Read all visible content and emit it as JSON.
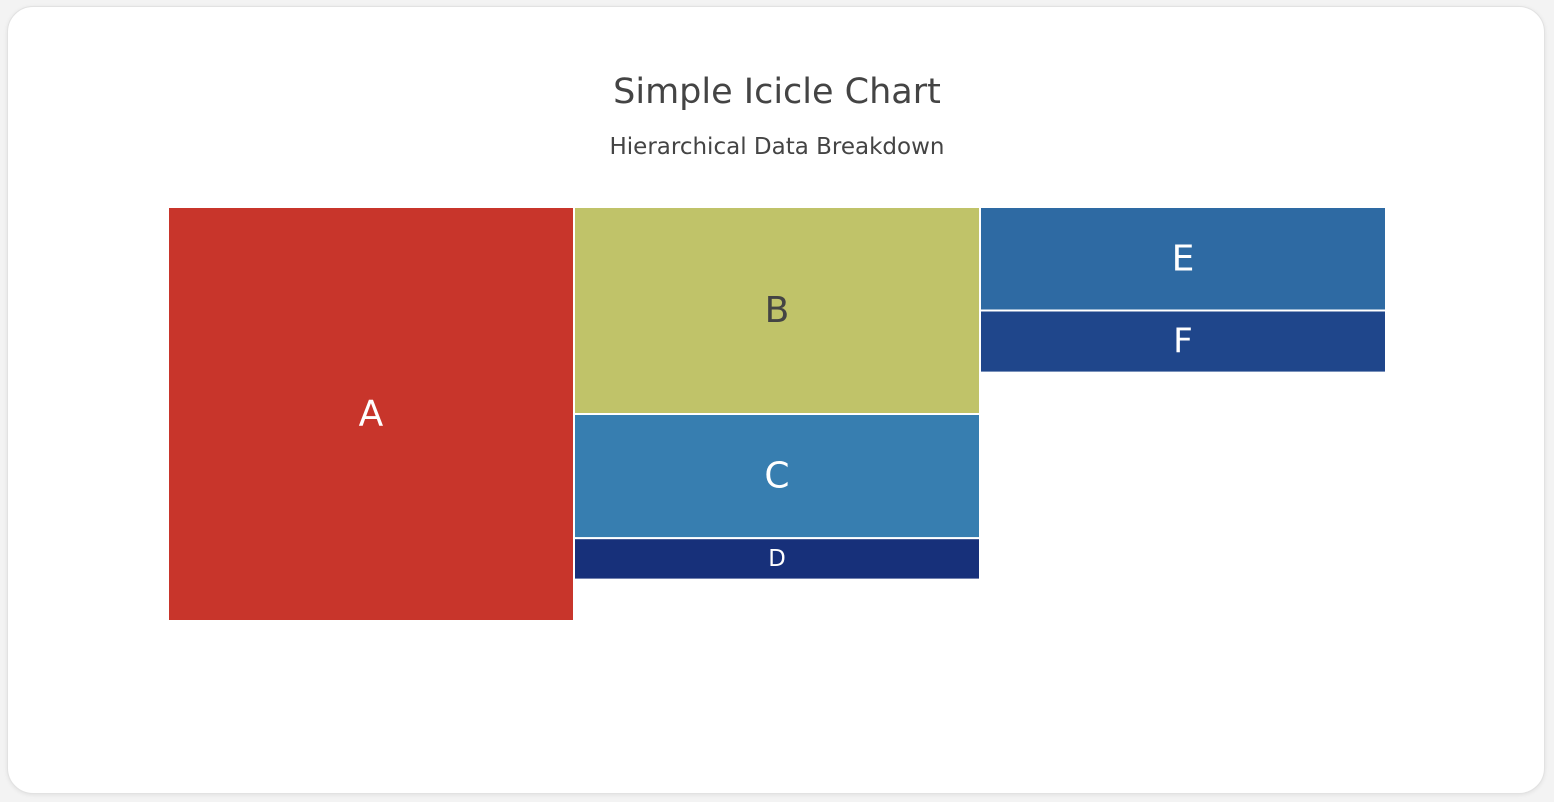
{
  "chart_data": {
    "type": "icicle",
    "title": "Simple Icicle Chart",
    "subtitle": "Hierarchical Data Breakdown",
    "orientation": "horizontal",
    "nodes": [
      {
        "id": "A",
        "label": "A",
        "parent": "",
        "value": 100,
        "color": "#c8352b",
        "text_color": "#ffffff"
      },
      {
        "id": "B",
        "label": "B",
        "parent": "A",
        "value": 50,
        "color": "#c0c369",
        "text_color": "#444444"
      },
      {
        "id": "C",
        "label": "C",
        "parent": "A",
        "value": 30,
        "color": "#377eb0",
        "text_color": "#ffffff"
      },
      {
        "id": "D",
        "label": "D",
        "parent": "A",
        "value": 10,
        "color": "#17307a",
        "text_color": "#ffffff"
      },
      {
        "id": "E",
        "label": "E",
        "parent": "B",
        "value": 25,
        "color": "#2e6aa3",
        "text_color": "#ffffff"
      },
      {
        "id": "F",
        "label": "F",
        "parent": "B",
        "value": 15,
        "color": "#1f468b",
        "text_color": "#ffffff"
      }
    ]
  }
}
